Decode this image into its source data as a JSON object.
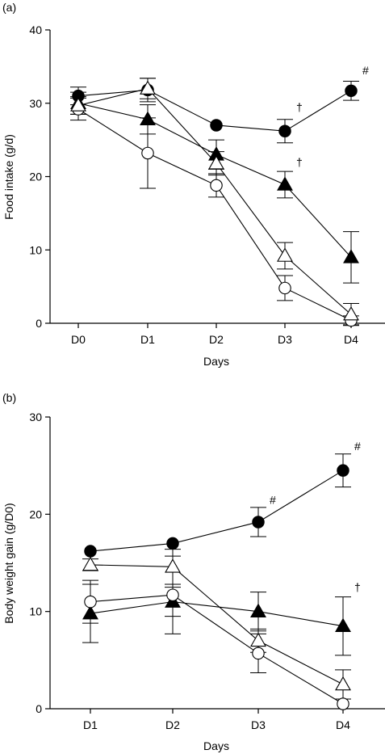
{
  "chart_data": [
    {
      "panel_label": "(a)",
      "type": "line",
      "xlabel": "Days",
      "ylabel": "Food intake (g/d)",
      "categories": [
        "D0",
        "D1",
        "D2",
        "D3",
        "D4"
      ],
      "ylim": [
        0,
        40
      ],
      "yticks": [
        "0",
        "10",
        "20",
        "30",
        "40"
      ],
      "series": [
        {
          "marker": "filled-circle",
          "values": [
            31.0,
            31.8,
            27.0,
            26.2,
            31.7
          ],
          "errors": [
            1.2,
            1.6,
            0,
            1.6,
            1.3
          ]
        },
        {
          "marker": "filled-triangle",
          "values": [
            30.0,
            27.8,
            23.0,
            18.9,
            9.0
          ],
          "errors": [
            1.5,
            2.0,
            2.0,
            1.8,
            3.5
          ]
        },
        {
          "marker": "open-triangle",
          "values": [
            29.7,
            32.0,
            21.8,
            9.2,
            1.2
          ],
          "errors": [
            1.2,
            1.4,
            1.6,
            1.8,
            1.5
          ]
        },
        {
          "marker": "open-circle",
          "values": [
            29.2,
            23.2,
            18.8,
            4.8,
            0.4
          ],
          "errors": [
            1.5,
            4.8,
            1.6,
            1.7,
            0.6
          ]
        }
      ],
      "annotations": [
        {
          "text": "#",
          "x": "D4",
          "y": 34.5
        },
        {
          "text": "†",
          "x": "D3",
          "y": 29.5
        },
        {
          "text": "†",
          "x": "D3",
          "y": 22.0
        }
      ],
      "grid": false,
      "legend": "none"
    },
    {
      "panel_label": "(b)",
      "type": "line",
      "xlabel": "Days",
      "ylabel": "Body weight gain (g/D0)",
      "categories": [
        "D1",
        "D2",
        "D3",
        "D4"
      ],
      "ylim": [
        0,
        30
      ],
      "yticks": [
        "0",
        "10",
        "20",
        "30"
      ],
      "series": [
        {
          "marker": "filled-circle",
          "values": [
            16.2,
            17.0,
            19.2,
            24.5
          ],
          "errors": [
            0,
            0,
            1.5,
            1.7
          ]
        },
        {
          "marker": "filled-triangle",
          "values": [
            9.8,
            11.0,
            10.0,
            8.5
          ],
          "errors": [
            3.0,
            1.5,
            2.0,
            3.0
          ]
        },
        {
          "marker": "open-triangle",
          "values": [
            14.8,
            14.6,
            7.0,
            2.5
          ],
          "errors": [
            0.6,
            1.8,
            1.2,
            1.5
          ]
        },
        {
          "marker": "open-circle",
          "values": [
            11.0,
            11.7,
            5.7,
            0.5
          ],
          "errors": [
            2.2,
            4.0,
            2.0,
            0.5
          ]
        }
      ],
      "annotations": [
        {
          "text": "#",
          "x": "D4",
          "y": 27.0
        },
        {
          "text": "#",
          "x": "D3",
          "y": 21.5
        },
        {
          "text": "†",
          "x": "D4",
          "y": 12.5
        }
      ],
      "grid": false,
      "legend": "none"
    }
  ]
}
